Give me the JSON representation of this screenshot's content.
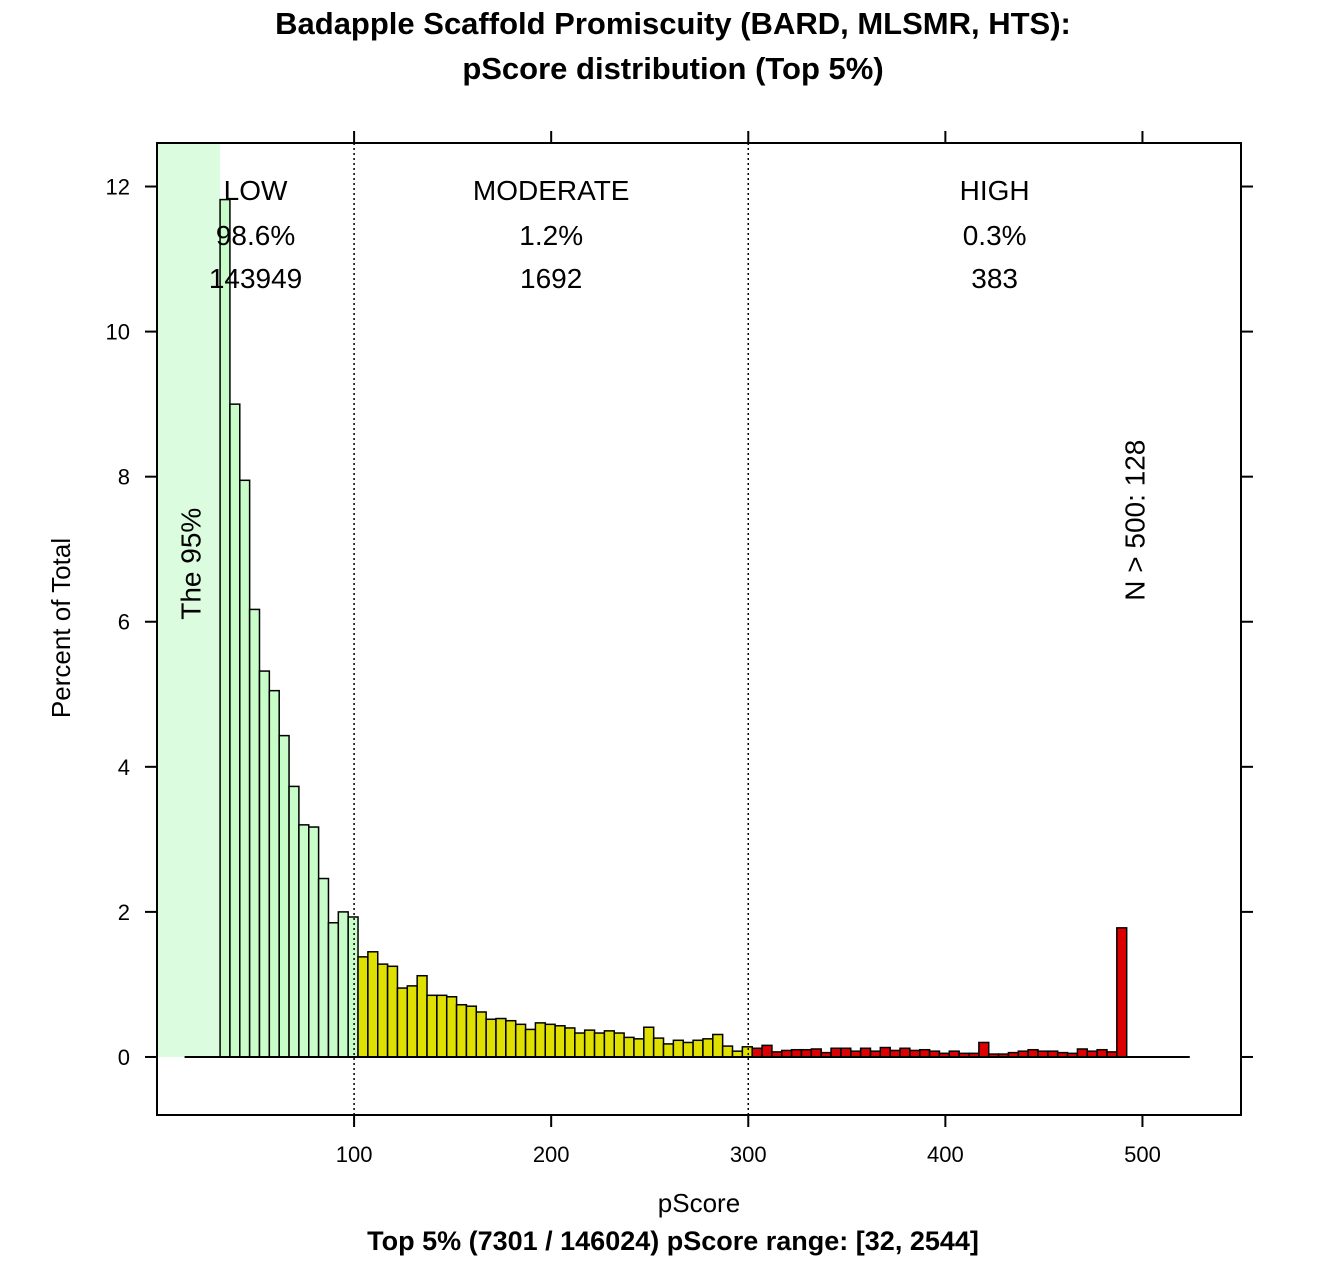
{
  "chart_data": {
    "type": "bar",
    "title_line1": "Badapple Scaffold Promiscuity (BARD, MLSMR, HTS):",
    "title_line2": "pScore distribution (Top 5%)",
    "xlabel": "pScore",
    "ylabel": "Percent of Total",
    "subtitle": "Top 5% (7301 / 146024) pScore range: [32, 2544]",
    "xlim": [
      0,
      550
    ],
    "ylim": [
      -0.8,
      12.6
    ],
    "x_ticks": [
      100,
      200,
      300,
      400,
      500
    ],
    "y_ticks": [
      0,
      2,
      4,
      6,
      8,
      10,
      12
    ],
    "bin_width": 5,
    "bin_start": 32,
    "thresholds": [
      100,
      300
    ],
    "shaded_band": {
      "label": "The 95%",
      "x": [
        0,
        32
      ],
      "color": "#dcfce0"
    },
    "regions": [
      {
        "name": "LOW",
        "percent": "98.6%",
        "count": "143949",
        "color": "#c8fcc8"
      },
      {
        "name": "MODERATE",
        "percent": "1.2%",
        "count": "1692",
        "color": "#e0e000"
      },
      {
        "name": "HIGH",
        "percent": "0.3%",
        "count": "383",
        "color": "#dd0000"
      }
    ],
    "overflow_note": "N > 500: 128",
    "values": [
      11.82,
      9.0,
      7.95,
      6.17,
      5.32,
      5.05,
      4.43,
      3.73,
      3.2,
      3.17,
      2.46,
      1.85,
      2.0,
      1.93,
      1.38,
      1.45,
      1.28,
      1.25,
      0.95,
      0.98,
      1.12,
      0.85,
      0.85,
      0.83,
      0.72,
      0.7,
      0.62,
      0.52,
      0.53,
      0.5,
      0.45,
      0.38,
      0.47,
      0.45,
      0.43,
      0.4,
      0.33,
      0.37,
      0.33,
      0.36,
      0.33,
      0.27,
      0.25,
      0.41,
      0.26,
      0.18,
      0.23,
      0.2,
      0.23,
      0.25,
      0.31,
      0.15,
      0.08,
      0.14,
      0.12,
      0.16,
      0.07,
      0.09,
      0.1,
      0.1,
      0.11,
      0.06,
      0.12,
      0.12,
      0.08,
      0.12,
      0.08,
      0.13,
      0.09,
      0.12,
      0.09,
      0.1,
      0.08,
      0.05,
      0.08,
      0.05,
      0.05,
      0.2,
      0.04,
      0.04,
      0.06,
      0.08,
      0.1,
      0.08,
      0.08,
      0.06,
      0.05,
      0.11,
      0.08,
      0.1,
      0.07,
      1.78
    ]
  }
}
